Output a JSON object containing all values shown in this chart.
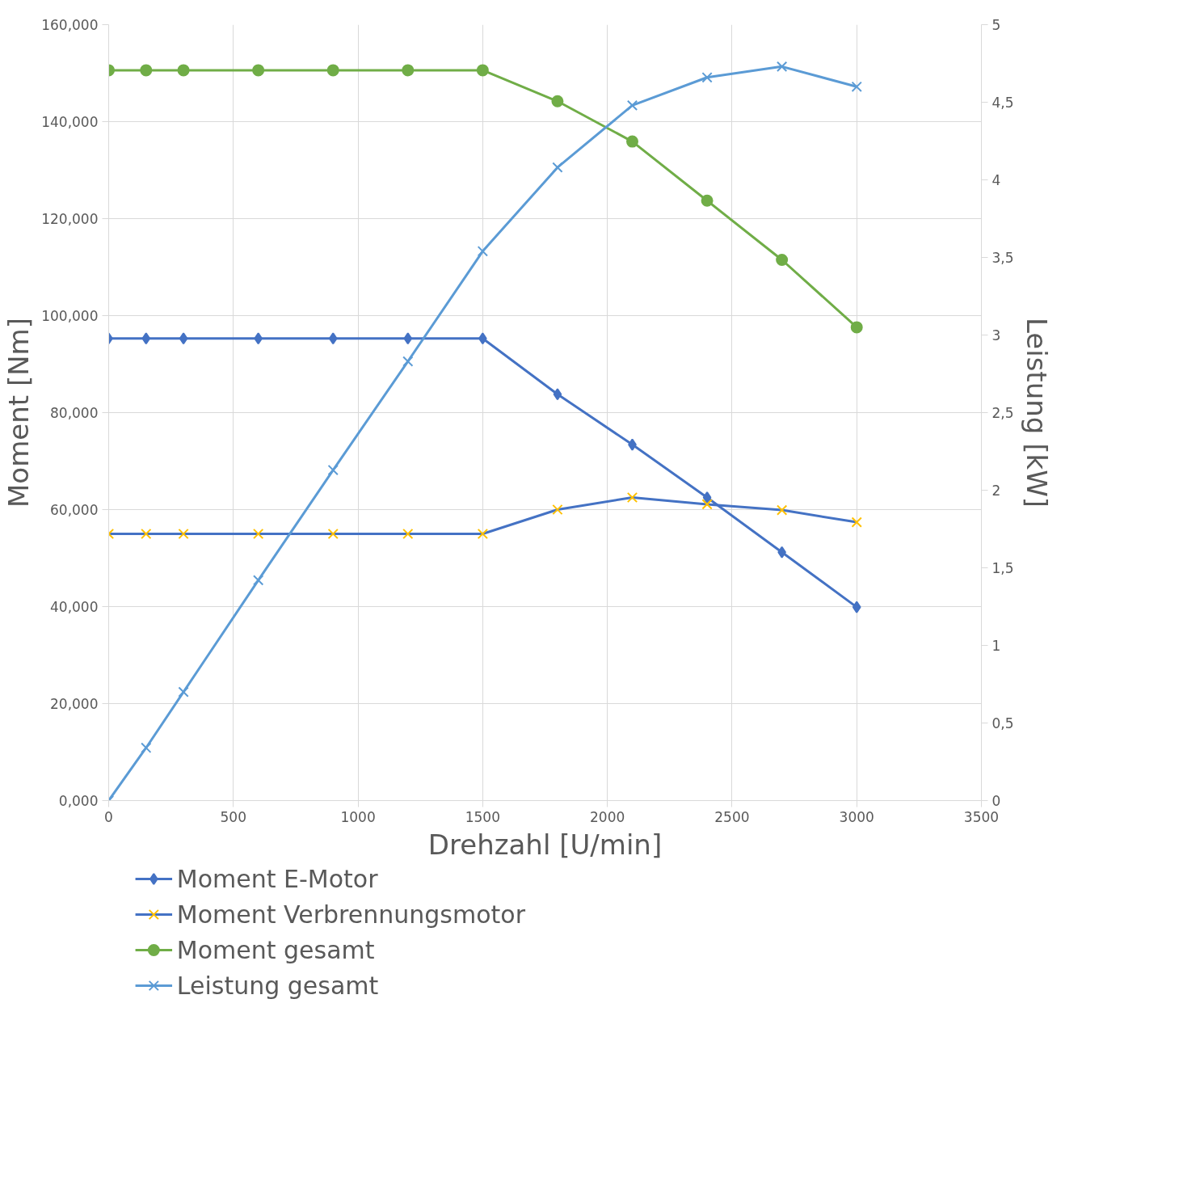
{
  "chart_data": {
    "type": "line",
    "xlabel": "Drehzahl [U/min]",
    "ylabel": "Moment [Nm]",
    "y2label": "Leistung [kW]",
    "x": [
      0,
      150,
      300,
      600,
      900,
      1200,
      1500,
      1800,
      2100,
      2400,
      2700,
      3000
    ],
    "xlim": [
      0,
      3500
    ],
    "xticks": [
      0,
      500,
      1000,
      1500,
      2000,
      2500,
      3000,
      3500
    ],
    "ylim": [
      0,
      160
    ],
    "yticks": [
      {
        "value": 0,
        "label": "0,000"
      },
      {
        "value": 20,
        "label": "20,000"
      },
      {
        "value": 40,
        "label": "40,000"
      },
      {
        "value": 60,
        "label": "60,000"
      },
      {
        "value": 80,
        "label": "80,000"
      },
      {
        "value": 100,
        "label": "100,000"
      },
      {
        "value": 120,
        "label": "120,000"
      },
      {
        "value": 140,
        "label": "140,000"
      },
      {
        "value": 160,
        "label": "160,000"
      }
    ],
    "y2lim": [
      0,
      5
    ],
    "y2ticks": [
      0,
      {
        "value": 0.5,
        "label": "0,5"
      },
      1,
      {
        "value": 1.5,
        "label": "1,5"
      },
      2,
      {
        "value": 2.5,
        "label": "2,5"
      },
      3,
      {
        "value": 3.5,
        "label": "3,5"
      },
      4,
      {
        "value": 4.5,
        "label": "4,5"
      },
      5
    ],
    "grid": true,
    "legend": "bottom",
    "line_style": "solid",
    "series": [
      {
        "name": "Moment E-Motor",
        "color": "#4472c4",
        "marker": "diamond",
        "values": [
          95.3,
          95.3,
          95.3,
          95.3,
          95.3,
          95.3,
          95.3,
          83.8,
          73.4,
          62.5,
          51.2,
          39.9
        ]
      },
      {
        "name": "Moment Verbrennungsmotor",
        "color": "#4472c4",
        "colors": [
          "#ffc000",
          "#ffc000",
          "#ffc000",
          "#ffc000",
          "#ffc000",
          "#ffc000",
          "#ffc000",
          "#ffc000",
          "#ffc000",
          "#ffc000",
          "#ffc000",
          "#ffc000"
        ],
        "marker": "cross",
        "values": [
          55.0,
          55.0,
          55.0,
          55.0,
          55.0,
          55.0,
          55.0,
          60.0,
          62.5,
          61.1,
          59.9,
          57.4
        ]
      },
      {
        "name": "Moment gesamt",
        "color": "#70ad47",
        "marker": "circle",
        "values": [
          150.6,
          150.6,
          150.6,
          150.6,
          150.6,
          150.6,
          150.6,
          144.2,
          135.9,
          123.7,
          111.5,
          97.6
        ]
      },
      {
        "name": "Leistung gesamt",
        "color": "#5b9bd5",
        "marker": "cross",
        "axis": "y2",
        "values": [
          0,
          0.34,
          0.7,
          1.42,
          2.13,
          2.83,
          3.54,
          4.08,
          4.48,
          4.66,
          4.73,
          4.6
        ]
      }
    ]
  }
}
